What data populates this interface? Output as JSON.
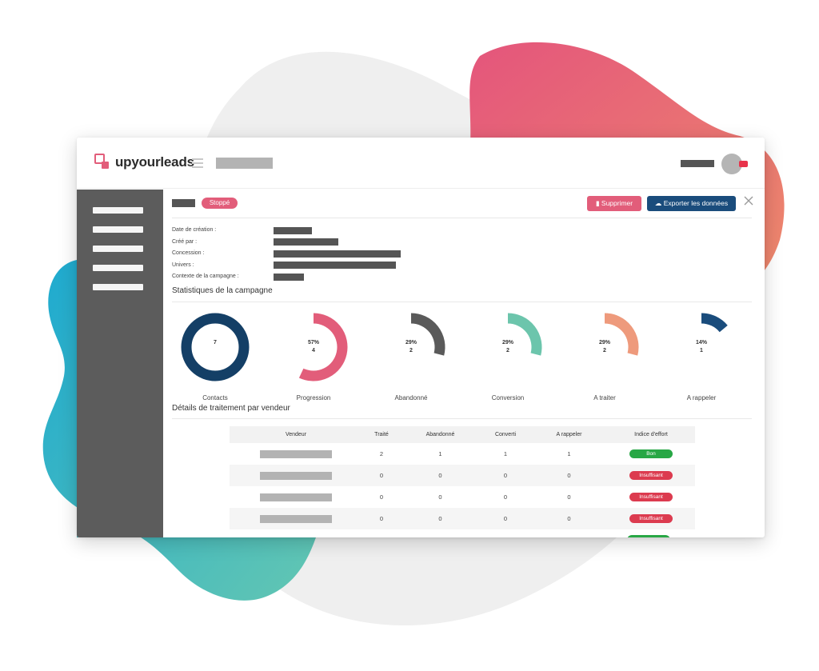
{
  "app": {
    "brand": "upyourleads"
  },
  "colors": {
    "accent_pink": "#e25d7a",
    "primary_blue": "#1a4c7c",
    "sidebar": "#5c5c5c"
  },
  "campaign": {
    "status": "Stoppé",
    "actions": {
      "delete_label": "Supprimer",
      "export_label": "Exporter les données"
    },
    "info_labels": [
      "Date de création :",
      "Créé par :",
      "Concession :",
      "Univers :",
      "Contexte de la campagne :"
    ]
  },
  "stats": {
    "title": "Statistiques de la campagne",
    "items": [
      {
        "label": "Contacts",
        "center": "7",
        "sub": "",
        "fraction": 1.0,
        "color": "#143f66"
      },
      {
        "label": "Progression",
        "center": "57%",
        "sub": "4",
        "fraction": 0.57,
        "color": "#e25d7a"
      },
      {
        "label": "Abandonné",
        "center": "29%",
        "sub": "2",
        "fraction": 0.29,
        "color": "#5a5a5a"
      },
      {
        "label": "Conversion",
        "center": "29%",
        "sub": "2",
        "fraction": 0.29,
        "color": "#6cc5ac"
      },
      {
        "label": "A traiter",
        "center": "29%",
        "sub": "2",
        "fraction": 0.29,
        "color": "#ee9a7c"
      },
      {
        "label": "A rappeler",
        "center": "14%",
        "sub": "1",
        "fraction": 0.14,
        "color": "#1a4c7c"
      }
    ]
  },
  "vendors": {
    "title": "Détails de traitement par vendeur",
    "columns": [
      "Vendeur",
      "Traité",
      "Abandonné",
      "Converti",
      "A rappeler",
      "Indice d'effort"
    ],
    "rows": [
      {
        "traite": "2",
        "abandonne": "1",
        "converti": "1",
        "rappeler": "1",
        "effort": "Bon",
        "effort_status": "good"
      },
      {
        "traite": "0",
        "abandonne": "0",
        "converti": "0",
        "rappeler": "0",
        "effort": "Insuffisant",
        "effort_status": "bad"
      },
      {
        "traite": "0",
        "abandonne": "0",
        "converti": "0",
        "rappeler": "0",
        "effort": "Insuffisant",
        "effort_status": "bad"
      },
      {
        "traite": "0",
        "abandonne": "0",
        "converti": "0",
        "rappeler": "0",
        "effort": "Insuffisant",
        "effort_status": "bad"
      }
    ]
  }
}
